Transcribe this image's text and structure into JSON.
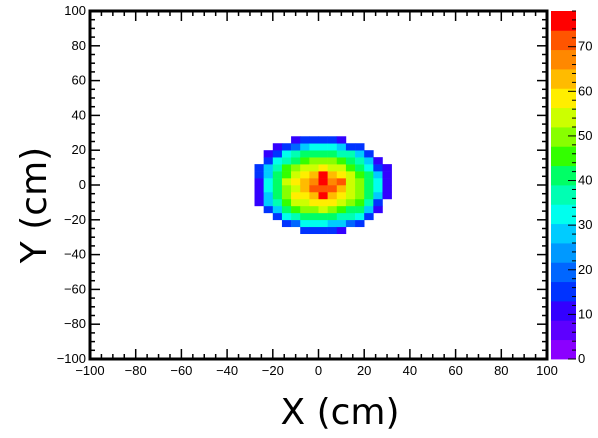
{
  "chart_data": {
    "type": "heatmap",
    "title": "",
    "xlabel": "X (cm)",
    "ylabel": "Y (cm)",
    "xlim": [
      -100,
      100
    ],
    "ylim": [
      -100,
      100
    ],
    "x_ticks": [
      "−100",
      "−80",
      "−60",
      "−40",
      "−20",
      "0",
      "20",
      "40",
      "60",
      "80",
      "100"
    ],
    "y_ticks": [
      "−100",
      "−80",
      "−60",
      "−40",
      "−20",
      "0",
      "20",
      "40",
      "60",
      "80",
      "100"
    ],
    "x_tick_values": [
      -100,
      -80,
      -60,
      -40,
      -20,
      0,
      20,
      40,
      60,
      80,
      100
    ],
    "y_tick_values": [
      -100,
      -80,
      -60,
      -40,
      -20,
      0,
      20,
      40,
      60,
      80,
      100
    ],
    "colorbar": {
      "range": [
        0,
        78
      ],
      "ticks": [
        "0",
        "10",
        "20",
        "30",
        "40",
        "50",
        "60",
        "70"
      ],
      "tick_values": [
        0,
        10,
        20,
        30,
        40,
        50,
        60,
        70
      ]
    },
    "grid": false,
    "bin_size": 4,
    "values": [
      [
        -26,
        -2,
        10
      ],
      [
        -26,
        2,
        12
      ],
      [
        -26,
        -6,
        11
      ],
      [
        -26,
        6,
        13
      ],
      [
        -26,
        -10,
        12
      ],
      [
        -26,
        10,
        14
      ],
      [
        -22,
        -14,
        15
      ],
      [
        -22,
        -10,
        28
      ],
      [
        -22,
        -6,
        30
      ],
      [
        -22,
        -2,
        32
      ],
      [
        -22,
        2,
        31
      ],
      [
        -22,
        6,
        29
      ],
      [
        -22,
        10,
        30
      ],
      [
        -22,
        14,
        14
      ],
      [
        -22,
        18,
        12
      ],
      [
        -18,
        -18,
        13
      ],
      [
        -18,
        -14,
        30
      ],
      [
        -18,
        -10,
        38
      ],
      [
        -18,
        -6,
        42
      ],
      [
        -18,
        -2,
        40
      ],
      [
        -18,
        2,
        43
      ],
      [
        -18,
        6,
        41
      ],
      [
        -18,
        10,
        36
      ],
      [
        -18,
        14,
        32
      ],
      [
        -18,
        18,
        14
      ],
      [
        -18,
        22,
        10
      ],
      [
        -14,
        -22,
        16
      ],
      [
        -14,
        -18,
        34
      ],
      [
        -14,
        -14,
        40
      ],
      [
        -14,
        -10,
        46
      ],
      [
        -14,
        -6,
        50
      ],
      [
        -14,
        -2,
        48
      ],
      [
        -14,
        2,
        52
      ],
      [
        -14,
        6,
        47
      ],
      [
        -14,
        10,
        44
      ],
      [
        -14,
        14,
        38
      ],
      [
        -14,
        18,
        32
      ],
      [
        -14,
        22,
        15
      ],
      [
        -10,
        -22,
        18
      ],
      [
        -10,
        -18,
        36
      ],
      [
        -10,
        -14,
        44
      ],
      [
        -10,
        -10,
        52
      ],
      [
        -10,
        -6,
        58
      ],
      [
        -10,
        -2,
        55
      ],
      [
        -10,
        2,
        57
      ],
      [
        -10,
        6,
        54
      ],
      [
        -10,
        10,
        48
      ],
      [
        -10,
        14,
        42
      ],
      [
        -10,
        18,
        36
      ],
      [
        -10,
        22,
        18
      ],
      [
        -10,
        26,
        12
      ],
      [
        -6,
        -26,
        14
      ],
      [
        -6,
        -22,
        32
      ],
      [
        -6,
        -18,
        40
      ],
      [
        -6,
        -14,
        48
      ],
      [
        -6,
        -10,
        56
      ],
      [
        -6,
        -6,
        60
      ],
      [
        -6,
        -2,
        62
      ],
      [
        -6,
        2,
        63
      ],
      [
        -6,
        6,
        58
      ],
      [
        -6,
        10,
        52
      ],
      [
        -6,
        14,
        46
      ],
      [
        -6,
        18,
        40
      ],
      [
        -6,
        22,
        30
      ],
      [
        -6,
        26,
        14
      ],
      [
        -2,
        -26,
        15
      ],
      [
        -2,
        -22,
        34
      ],
      [
        -2,
        -18,
        42
      ],
      [
        -2,
        -14,
        50
      ],
      [
        -2,
        -10,
        58
      ],
      [
        -2,
        -6,
        64
      ],
      [
        -2,
        -2,
        70
      ],
      [
        -2,
        2,
        66
      ],
      [
        -2,
        6,
        62
      ],
      [
        -2,
        10,
        55
      ],
      [
        -2,
        14,
        48
      ],
      [
        -2,
        18,
        42
      ],
      [
        -2,
        22,
        32
      ],
      [
        -2,
        26,
        15
      ],
      [
        2,
        -26,
        14
      ],
      [
        2,
        -22,
        33
      ],
      [
        2,
        -18,
        43
      ],
      [
        2,
        -14,
        52
      ],
      [
        2,
        -10,
        60
      ],
      [
        2,
        -6,
        76
      ],
      [
        2,
        -2,
        72
      ],
      [
        2,
        2,
        74
      ],
      [
        2,
        6,
        75
      ],
      [
        2,
        10,
        58
      ],
      [
        2,
        14,
        50
      ],
      [
        2,
        18,
        43
      ],
      [
        2,
        22,
        34
      ],
      [
        2,
        26,
        16
      ],
      [
        6,
        -26,
        13
      ],
      [
        6,
        -22,
        30
      ],
      [
        6,
        -18,
        41
      ],
      [
        6,
        -14,
        49
      ],
      [
        6,
        -10,
        57
      ],
      [
        6,
        -6,
        63
      ],
      [
        6,
        -2,
        73
      ],
      [
        6,
        2,
        68
      ],
      [
        6,
        6,
        62
      ],
      [
        6,
        10,
        56
      ],
      [
        6,
        14,
        48
      ],
      [
        6,
        18,
        41
      ],
      [
        6,
        22,
        31
      ],
      [
        6,
        26,
        14
      ],
      [
        10,
        -26,
        12
      ],
      [
        10,
        -22,
        28
      ],
      [
        10,
        -18,
        38
      ],
      [
        10,
        -14,
        46
      ],
      [
        10,
        -10,
        53
      ],
      [
        10,
        -6,
        58
      ],
      [
        10,
        -2,
        62
      ],
      [
        10,
        2,
        70
      ],
      [
        10,
        6,
        57
      ],
      [
        10,
        10,
        52
      ],
      [
        10,
        14,
        45
      ],
      [
        10,
        18,
        38
      ],
      [
        10,
        22,
        28
      ],
      [
        10,
        26,
        12
      ],
      [
        14,
        -22,
        18
      ],
      [
        14,
        -18,
        35
      ],
      [
        14,
        -14,
        42
      ],
      [
        14,
        -10,
        48
      ],
      [
        14,
        -6,
        54
      ],
      [
        14,
        -2,
        56
      ],
      [
        14,
        2,
        55
      ],
      [
        14,
        6,
        52
      ],
      [
        14,
        10,
        47
      ],
      [
        14,
        14,
        41
      ],
      [
        14,
        18,
        35
      ],
      [
        14,
        22,
        17
      ],
      [
        18,
        -22,
        15
      ],
      [
        18,
        -18,
        32
      ],
      [
        18,
        -14,
        39
      ],
      [
        18,
        -10,
        44
      ],
      [
        18,
        -6,
        48
      ],
      [
        18,
        -2,
        50
      ],
      [
        18,
        2,
        49
      ],
      [
        18,
        6,
        46
      ],
      [
        18,
        10,
        42
      ],
      [
        18,
        14,
        36
      ],
      [
        18,
        18,
        30
      ],
      [
        18,
        22,
        14
      ],
      [
        22,
        -18,
        13
      ],
      [
        22,
        -14,
        30
      ],
      [
        22,
        -10,
        36
      ],
      [
        22,
        -6,
        40
      ],
      [
        22,
        -2,
        42
      ],
      [
        22,
        2,
        41
      ],
      [
        22,
        6,
        39
      ],
      [
        22,
        10,
        34
      ],
      [
        22,
        14,
        28
      ],
      [
        22,
        18,
        13
      ],
      [
        26,
        -14,
        12
      ],
      [
        26,
        -10,
        16
      ],
      [
        26,
        -6,
        30
      ],
      [
        26,
        -2,
        32
      ],
      [
        26,
        2,
        31
      ],
      [
        26,
        6,
        29
      ],
      [
        26,
        10,
        15
      ],
      [
        26,
        14,
        11
      ],
      [
        30,
        -6,
        11
      ],
      [
        30,
        -2,
        12
      ],
      [
        30,
        2,
        12
      ],
      [
        30,
        6,
        11
      ],
      [
        30,
        10,
        10
      ]
    ]
  }
}
